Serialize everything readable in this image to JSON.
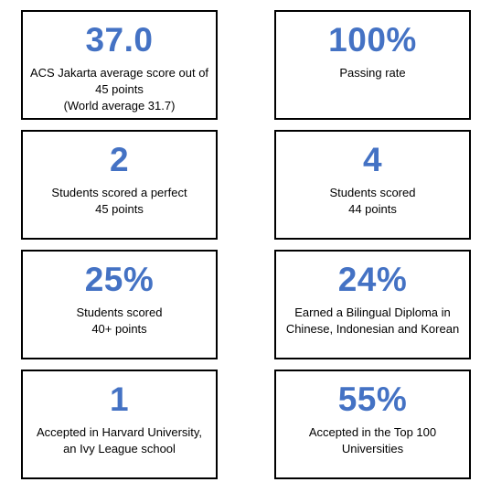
{
  "cards": [
    {
      "stat": "37.0",
      "lines": [
        "ACS Jakarta average score out of",
        "45 points",
        "(World average 31.7)"
      ]
    },
    {
      "stat": "100%",
      "lines": [
        "Passing rate"
      ]
    },
    {
      "stat": "2",
      "lines": [
        "Students scored a perfect",
        "45 points"
      ]
    },
    {
      "stat": "4",
      "lines": [
        "Students scored",
        "44 points"
      ]
    },
    {
      "stat": "25%",
      "lines": [
        "Students scored",
        "40+ points"
      ]
    },
    {
      "stat": "24%",
      "lines": [
        "Earned a Bilingual Diploma in",
        "Chinese, Indonesian and Korean"
      ]
    },
    {
      "stat": "1",
      "lines": [
        "Accepted in Harvard University,",
        "an Ivy League school"
      ]
    },
    {
      "stat": "55%",
      "lines": [
        "Accepted in the Top 100",
        "Universities"
      ]
    }
  ],
  "colors": {
    "stat": "#4472c4",
    "text": "#000000",
    "border": "#000000",
    "background": "#ffffff"
  }
}
